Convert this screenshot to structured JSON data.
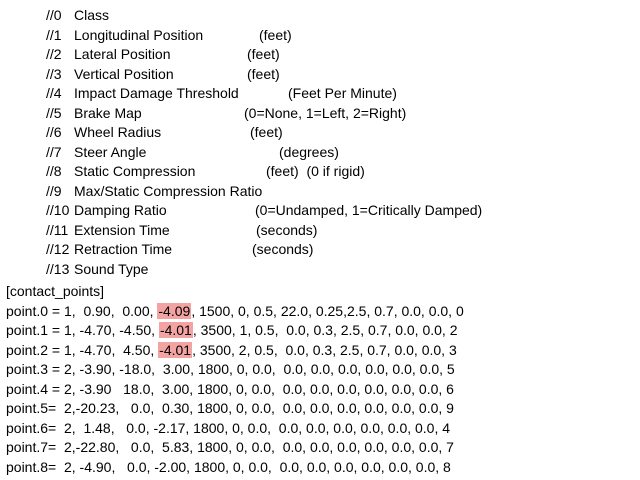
{
  "comments": [
    {
      "num": "//0",
      "name": "Class",
      "unit": ""
    },
    {
      "num": "//1",
      "name": "Longitudinal Position",
      "unit": "(feet)"
    },
    {
      "num": "//2",
      "name": "Lateral Position",
      "unit": "(feet)"
    },
    {
      "num": "//3",
      "name": "Vertical Position",
      "unit": "(feet)"
    },
    {
      "num": "//4",
      "name": "Impact Damage Threshold",
      "unit": "(Feet Per Minute)"
    },
    {
      "num": "//5",
      "name": "Brake Map",
      "unit": "(0=None, 1=Left, 2=Right)"
    },
    {
      "num": "//6",
      "name": "Wheel Radius",
      "unit": "(feet)"
    },
    {
      "num": "//7",
      "name": "Steer Angle",
      "unit": "(degrees)"
    },
    {
      "num": "//8",
      "name": "Static Compression",
      "unit": "(feet)  (0 if rigid)"
    },
    {
      "num": "//9",
      "name": "Max/Static Compression Ratio",
      "unit": ""
    },
    {
      "num": "//10",
      "name": "Damping Ratio",
      "unit": "(0=Undamped, 1=Critically Damped)"
    },
    {
      "num": "//11",
      "name": "Extension Time",
      "unit": "(seconds)"
    },
    {
      "num": "//12",
      "name": "Retraction Time",
      "unit": "(seconds)"
    },
    {
      "num": "//13",
      "name": "Sound Type",
      "unit": ""
    }
  ],
  "section_header": "[contact_points]",
  "highlight_color": "#f4a3a3",
  "points": [
    {
      "before": "point.0 = 1,  0.90,  0.00, ",
      "highlight": "-4.09",
      "after": ", 1500, 0, 0.5, 22.0, 0.25,2.5, 0.7, 0.0, 0.0, 0"
    },
    {
      "before": "point.1 = 1, -4.70, -4.50, ",
      "highlight": "-4.01",
      "after": ", 3500, 1, 0.5,  0.0, 0.3, 2.5, 0.7, 0.0, 0.0, 2"
    },
    {
      "before": "point.2 = 1, -4.70,  4.50, ",
      "highlight": "-4.01",
      "after": ", 3500, 2, 0.5,  0.0, 0.3, 2.5, 0.7, 0.0, 0.0, 3"
    },
    {
      "before": "point.3 = 2, -3.90, -18.0,  3.00, 1800, 0, 0.0,  0.0, 0.0, 0.0, 0.0, 0.0, 0.0, 5",
      "highlight": "",
      "after": ""
    },
    {
      "before": "point.4 = 2, -3.90   18.0,  3.00, 1800, 0, 0.0,  0.0, 0.0, 0.0, 0.0, 0.0, 0.0, 6",
      "highlight": "",
      "after": ""
    },
    {
      "before": "point.5=  2,-20.23,   0.0,  0.30, 1800, 0, 0.0,  0.0, 0.0, 0.0, 0.0, 0.0, 0.0, 9",
      "highlight": "",
      "after": ""
    },
    {
      "before": "point.6=  2,  1.48,   0.0, -2.17, 1800, 0, 0.0,  0.0, 0.0, 0.0, 0.0, 0.0, 0.0, 4",
      "highlight": "",
      "after": ""
    },
    {
      "before": "point.7=  2,-22.80,   0.0,  5.83, 1800, 0, 0.0,  0.0, 0.0, 0.0, 0.0, 0.0, 0.0, 7",
      "highlight": "",
      "after": ""
    },
    {
      "before": "point.8=  2, -4.90,   0.0, -2.00, 1800, 0, 0.0,  0.0, 0.0, 0.0, 0.0, 0.0, 0.0, 8",
      "highlight": "",
      "after": ""
    }
  ]
}
